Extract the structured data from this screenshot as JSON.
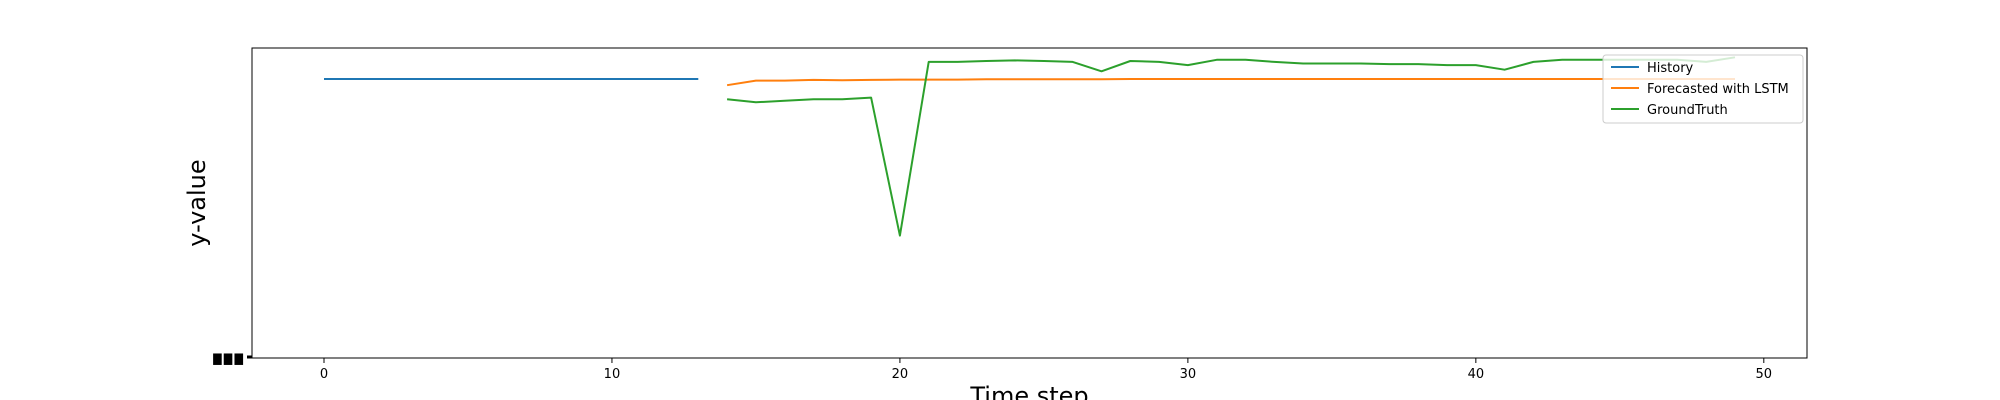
{
  "chart_data": {
    "type": "line",
    "xlabel": "Time step",
    "ylabel": "y-value",
    "xlim": [
      -2.5,
      51.5
    ],
    "ylim": [
      0,
      100
    ],
    "xticks": [
      0,
      10,
      20,
      30,
      40,
      50
    ],
    "ytick_labels_visible": "overlapping illegible labels",
    "grid": false,
    "legend_position": "top-right",
    "series": [
      {
        "name": "History",
        "color": "#1f77b4",
        "x": [
          0,
          1,
          2,
          3,
          4,
          5,
          6,
          7,
          8,
          9,
          10,
          11,
          12,
          13
        ],
        "y": [
          90,
          90,
          90,
          90,
          90,
          90,
          90,
          90,
          90,
          90,
          90,
          90,
          90,
          90
        ]
      },
      {
        "name": "Forecasted with LSTM",
        "color": "#ff7f0e",
        "x": [
          14,
          15,
          16,
          17,
          18,
          19,
          20,
          21,
          22,
          23,
          24,
          25,
          26,
          27,
          28,
          29,
          30,
          31,
          32,
          33,
          34,
          35,
          36,
          37,
          38,
          39,
          40,
          41,
          42,
          43,
          44,
          45,
          46,
          47,
          48,
          49
        ],
        "y": [
          88,
          89.5,
          89.5,
          89.7,
          89.6,
          89.7,
          89.8,
          89.8,
          89.8,
          89.9,
          89.9,
          89.9,
          89.9,
          89.9,
          90,
          90,
          90,
          90,
          90,
          90,
          90,
          90,
          90,
          90,
          90,
          90,
          90,
          90,
          90,
          90,
          90,
          90,
          90,
          90,
          90,
          90
        ]
      },
      {
        "name": "GroundTruth",
        "color": "#2ca02c",
        "x": [
          14,
          15,
          16,
          17,
          18,
          19,
          20,
          21,
          22,
          23,
          24,
          25,
          26,
          27,
          28,
          29,
          30,
          31,
          32,
          33,
          34,
          35,
          36,
          37,
          38,
          39,
          40,
          41,
          42,
          43,
          44,
          45,
          46,
          47,
          48,
          49
        ],
        "y": [
          83.5,
          82.5,
          83,
          83.5,
          83.5,
          84,
          39.5,
          95.5,
          95.5,
          95.8,
          96,
          95.8,
          95.5,
          92.5,
          95.8,
          95.5,
          94.5,
          96.2,
          96.2,
          95.5,
          95,
          95,
          95,
          94.8,
          94.8,
          94.5,
          94.5,
          93,
          95.5,
          96.2,
          96.2,
          96.2,
          96.2,
          96.2,
          95.5,
          97
        ]
      }
    ]
  }
}
